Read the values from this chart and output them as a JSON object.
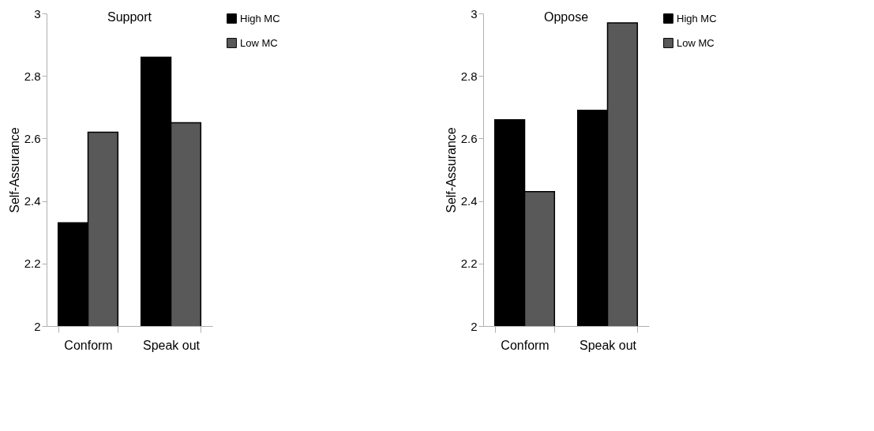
{
  "chart_data": [
    {
      "type": "bar",
      "title": "Support",
      "ylabel": "Self-Assurance",
      "categories": [
        "Conform",
        "Speak out"
      ],
      "ylim": [
        2,
        3
      ],
      "yticks": [
        2,
        2.2,
        2.4,
        2.6,
        2.8,
        3
      ],
      "legend": "right",
      "series": [
        {
          "name": "High MC",
          "color": "#000000",
          "values": [
            2.33,
            2.86
          ]
        },
        {
          "name": "Low MC",
          "color": "#595959",
          "values": [
            2.62,
            2.65
          ]
        }
      ]
    },
    {
      "type": "bar",
      "title": "Oppose",
      "ylabel": "Self-Assurance",
      "categories": [
        "Conform",
        "Speak out"
      ],
      "ylim": [
        2,
        3
      ],
      "yticks": [
        2,
        2.2,
        2.4,
        2.6,
        2.8,
        3
      ],
      "legend": "right",
      "series": [
        {
          "name": "High MC",
          "color": "#000000",
          "values": [
            2.66,
            2.69
          ]
        },
        {
          "name": "Low MC",
          "color": "#595959",
          "values": [
            2.43,
            2.97
          ]
        }
      ]
    }
  ]
}
